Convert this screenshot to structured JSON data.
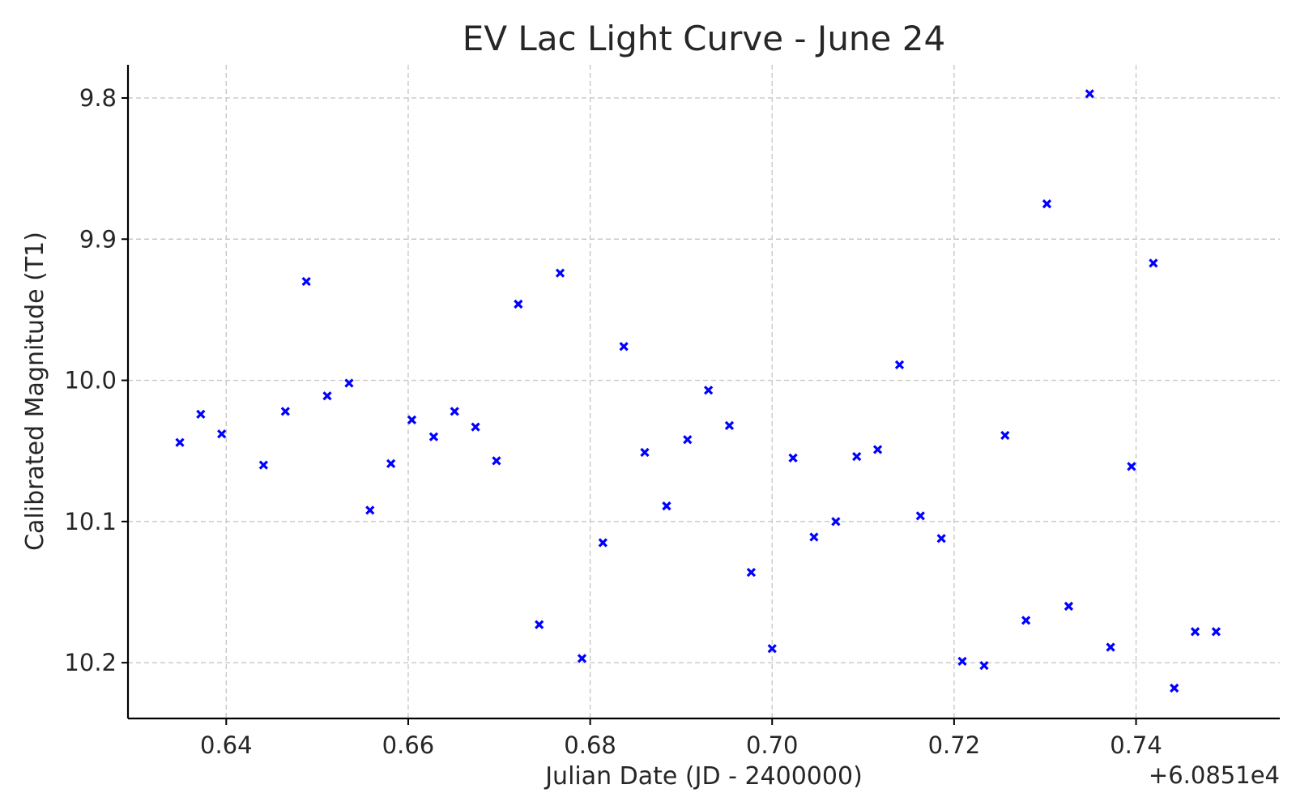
{
  "chart_data": {
    "type": "scatter",
    "title": "EV Lac Light Curve - June 24",
    "xlabel": "Julian Date (JD - 2400000)",
    "ylabel": "Calibrated Magnitude (T1)",
    "x_offset_label": "+6.0851e4",
    "xlim": [
      0.6292,
      0.7558
    ],
    "ylim": [
      9.7765,
      10.2395
    ],
    "y_inverted": true,
    "x_ticks": [
      0.64,
      0.66,
      0.68,
      0.7,
      0.72,
      0.74
    ],
    "x_tick_labels": [
      "0.64",
      "0.66",
      "0.68",
      "0.70",
      "0.72",
      "0.74"
    ],
    "y_ticks": [
      9.8,
      9.9,
      10.0,
      10.1,
      10.2
    ],
    "y_tick_labels": [
      "9.8",
      "9.9",
      "10.0",
      "10.1",
      "10.2"
    ],
    "grid": true,
    "marker": "x",
    "color": "#0000ff",
    "series": [
      {
        "x": [
          0.6349,
          0.6372,
          0.6395,
          0.6441,
          0.6465,
          0.6488,
          0.6511,
          0.6535,
          0.6558,
          0.6581,
          0.6604,
          0.6628,
          0.6651,
          0.6674,
          0.6697,
          0.6721,
          0.6744,
          0.6767,
          0.6791,
          0.6814,
          0.6837,
          0.686,
          0.6884,
          0.6907,
          0.693,
          0.6953,
          0.6977,
          0.7,
          0.7023,
          0.7046,
          0.707,
          0.7093,
          0.7116,
          0.714,
          0.7163,
          0.7186,
          0.7209,
          0.7233,
          0.7256,
          0.7279,
          0.7302,
          0.7326,
          0.7349,
          0.7372,
          0.7395,
          0.7419,
          0.7442,
          0.7465,
          0.7488
        ],
        "y": [
          10.044,
          10.024,
          10.038,
          10.06,
          10.022,
          9.93,
          10.011,
          10.002,
          10.092,
          10.059,
          10.028,
          10.04,
          10.022,
          10.033,
          10.057,
          9.946,
          10.173,
          9.924,
          10.197,
          10.115,
          9.976,
          10.051,
          10.089,
          10.042,
          10.007,
          10.032,
          10.136,
          10.19,
          10.055,
          10.111,
          10.1,
          10.054,
          10.049,
          9.989,
          10.096,
          10.112,
          10.199,
          10.202,
          10.039,
          10.17,
          9.875,
          10.16,
          9.797,
          10.189,
          10.061,
          9.917,
          10.218,
          10.178,
          10.178
        ]
      }
    ]
  }
}
